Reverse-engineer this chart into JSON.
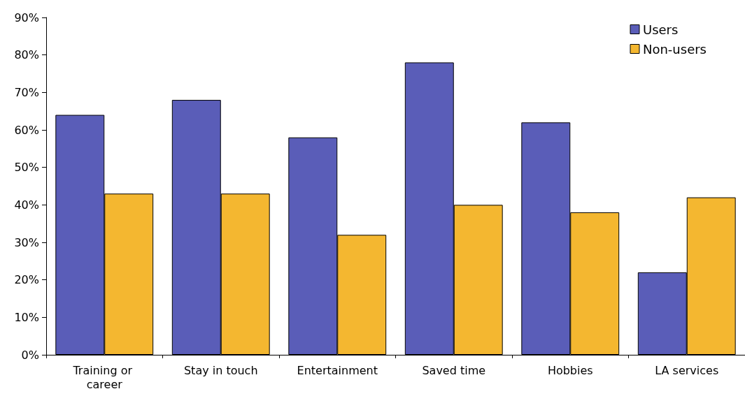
{
  "chart_data": {
    "type": "bar",
    "categories": [
      "Training or career",
      "Stay in touch",
      "Entertainment",
      "Saved time",
      "Hobbies",
      "LA services"
    ],
    "series": [
      {
        "name": "Users",
        "color": "#5a5db8",
        "values": [
          64,
          68,
          58,
          78,
          62,
          22
        ]
      },
      {
        "name": "Non-users",
        "color": "#f4b730",
        "values": [
          43,
          43,
          32,
          40,
          38,
          42
        ]
      }
    ],
    "ylim": [
      0,
      90
    ],
    "yticks": [
      {
        "value": 0,
        "label": "0%"
      },
      {
        "value": 10,
        "label": "10%"
      },
      {
        "value": 20,
        "label": "20%"
      },
      {
        "value": 30,
        "label": "30%"
      },
      {
        "value": 40,
        "label": "40%"
      },
      {
        "value": 50,
        "label": "50%"
      },
      {
        "value": 60,
        "label": "60%"
      },
      {
        "value": 70,
        "label": "70%"
      },
      {
        "value": 80,
        "label": "80%"
      },
      {
        "value": 90,
        "label": "90%"
      }
    ],
    "grid": false,
    "legend": "top right"
  }
}
